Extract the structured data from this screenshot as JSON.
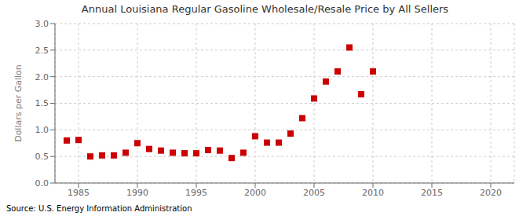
{
  "chart_data": {
    "type": "scatter",
    "title": "Annual Louisiana Regular Gasoline Wholesale/Resale Price by All Sellers",
    "ylabel": "Dollars per Gallon",
    "annotation": "Source: U.S. Energy Information Administration",
    "x": [
      1984,
      1985,
      1986,
      1987,
      1988,
      1989,
      1990,
      1991,
      1992,
      1993,
      1994,
      1995,
      1996,
      1997,
      1998,
      1999,
      2000,
      2001,
      2002,
      2003,
      2004,
      2005,
      2006,
      2007,
      2008,
      2009,
      2010
    ],
    "values": [
      0.8,
      0.81,
      0.5,
      0.52,
      0.52,
      0.57,
      0.75,
      0.64,
      0.61,
      0.57,
      0.56,
      0.56,
      0.62,
      0.61,
      0.47,
      0.57,
      0.88,
      0.76,
      0.76,
      0.93,
      1.22,
      1.59,
      1.91,
      2.1,
      2.55,
      1.67,
      2.1
    ],
    "color": "#cc0000",
    "marker": "square",
    "xlim": [
      1983,
      2022
    ],
    "ylim": [
      0.0,
      3.0
    ],
    "xticks": [
      1985,
      1990,
      1995,
      2000,
      2005,
      2010,
      2015,
      2020
    ],
    "yticks": [
      {
        "value": 0.0,
        "label": "0.0"
      },
      0.5,
      {
        "value": 1.0,
        "label": "1.0"
      },
      1.5,
      {
        "value": 2.0,
        "label": "2.0"
      },
      2.5,
      {
        "value": 3.0,
        "label": "3.0"
      }
    ],
    "grid": true
  }
}
